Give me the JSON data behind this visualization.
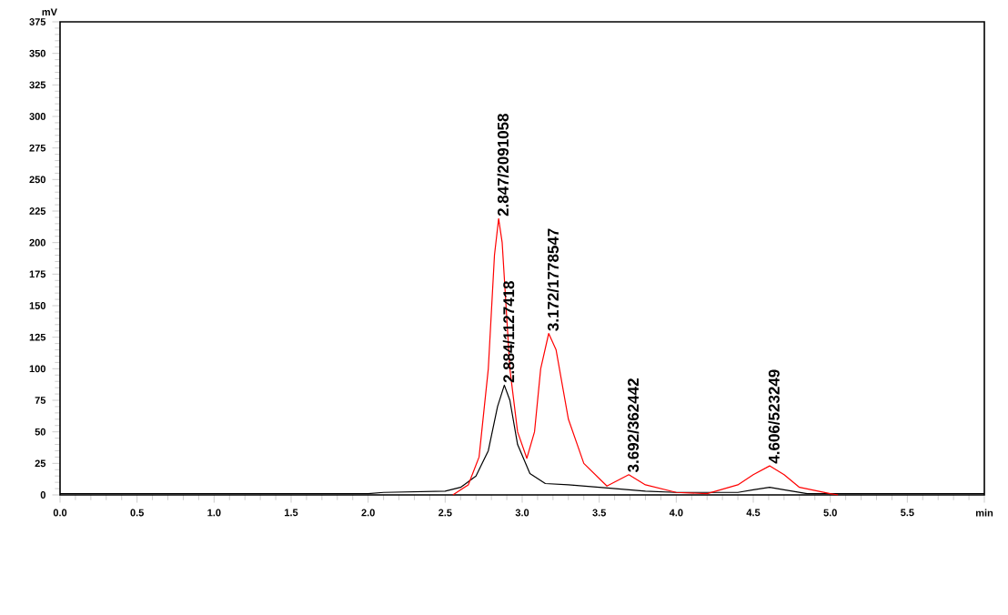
{
  "chart_data": {
    "type": "line",
    "ylabel": "mV",
    "xlim": [
      0,
      6
    ],
    "ylim": [
      0,
      375
    ],
    "xticks": [
      {
        "value": 0,
        "label": "0.0"
      },
      {
        "value": 0.5,
        "label": "0.5"
      },
      {
        "value": 1,
        "label": "1.0"
      },
      {
        "value": 1.5,
        "label": "1.5"
      },
      {
        "value": 2,
        "label": "2.0"
      },
      {
        "value": 2.5,
        "label": "2.5"
      },
      {
        "value": 3,
        "label": "3.0"
      },
      {
        "value": 3.5,
        "label": "3.5"
      },
      {
        "value": 4,
        "label": "4.0"
      },
      {
        "value": 4.5,
        "label": "4.5"
      },
      {
        "value": 5,
        "label": "5.0"
      },
      {
        "value": 5.5,
        "label": "5.5"
      },
      {
        "value": 6,
        "label": "min"
      }
    ],
    "yticks": [
      0,
      25,
      50,
      75,
      100,
      125,
      150,
      175,
      200,
      225,
      250,
      275,
      300,
      325,
      350,
      375
    ],
    "grid": false,
    "series": [
      {
        "color": "#000000",
        "x": [
          0,
          2.0,
          2.1,
          2.5,
          2.6,
          2.7,
          2.78,
          2.84,
          2.884,
          2.92,
          2.97,
          3.05,
          3.15,
          3.3,
          3.5,
          3.8,
          4.0,
          4.4,
          4.5,
          4.606,
          4.7,
          4.85,
          5.0,
          6.0
        ],
        "values": [
          1,
          1,
          2,
          3,
          6,
          15,
          35,
          70,
          87,
          75,
          40,
          17,
          9,
          8,
          6,
          3,
          2,
          2,
          4,
          6,
          4,
          1,
          1,
          1
        ]
      },
      {
        "color": "#ff0000",
        "x": [
          2.55,
          2.65,
          2.72,
          2.78,
          2.82,
          2.847,
          2.87,
          2.92,
          2.97,
          3.03,
          3.08,
          3.12,
          3.172,
          3.22,
          3.3,
          3.4,
          3.55,
          3.692,
          3.8,
          4.0,
          4.2,
          4.4,
          4.5,
          4.606,
          4.7,
          4.8,
          5.0,
          5.05
        ],
        "values": [
          0,
          8,
          30,
          100,
          190,
          219,
          200,
          100,
          50,
          29,
          50,
          100,
          128,
          115,
          60,
          25,
          7,
          16,
          8,
          2,
          1,
          8,
          16,
          23,
          16,
          6,
          1,
          0
        ]
      }
    ],
    "annotations": [
      {
        "text": "2.847/2091058",
        "x": 2.847,
        "y": 219
      },
      {
        "text": "2.884/1127418",
        "x": 2.884,
        "y": 87
      },
      {
        "text": "3.172/1778547",
        "x": 3.172,
        "y": 128
      },
      {
        "text": "3.692/362442",
        "x": 3.692,
        "y": 16
      },
      {
        "text": "4.606/523249",
        "x": 4.606,
        "y": 23
      }
    ]
  }
}
